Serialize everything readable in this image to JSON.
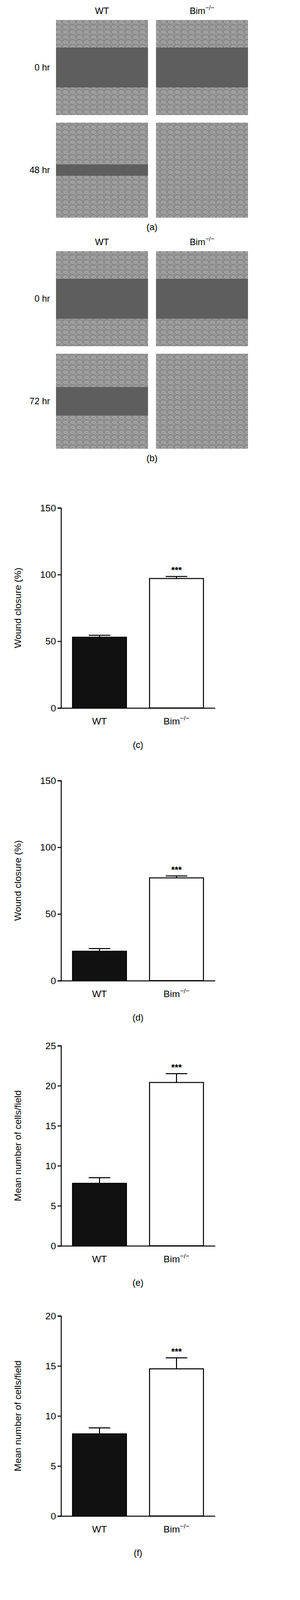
{
  "image_panels": [
    {
      "label": "(a)",
      "columns": [
        "WT",
        "Bim−/−"
      ],
      "rows": [
        "0 hr",
        "48 hr"
      ]
    },
    {
      "label": "(b)",
      "columns": [
        "WT",
        "Bim−/−"
      ],
      "rows": [
        "0 hr",
        "72 hr"
      ]
    }
  ],
  "chart_data": [
    {
      "type": "bar",
      "title": "(c)",
      "y_label": "Wound closure (%)",
      "categories": [
        "WT",
        "Bim−/−"
      ],
      "values": [
        53,
        97
      ],
      "errors": [
        1.5,
        1.5
      ],
      "colors": [
        "#111111",
        "#ffffff"
      ],
      "ylim": [
        0,
        150
      ],
      "yticks": [
        0,
        50,
        100,
        150
      ],
      "grid": false,
      "annotations": [
        {
          "category": "Bim−/−",
          "text": "***"
        }
      ]
    },
    {
      "type": "bar",
      "title": "(d)",
      "y_label": "Wound closure (%)",
      "categories": [
        "WT",
        "Bim−/−"
      ],
      "values": [
        22,
        77
      ],
      "errors": [
        2,
        1.5
      ],
      "colors": [
        "#111111",
        "#ffffff"
      ],
      "ylim": [
        0,
        150
      ],
      "yticks": [
        0,
        50,
        100,
        150
      ],
      "grid": false,
      "annotations": [
        {
          "category": "Bim−/−",
          "text": "***"
        }
      ]
    },
    {
      "type": "bar",
      "title": "(e)",
      "y_label": "Mean number of cells/field",
      "categories": [
        "WT",
        "Bim−/−"
      ],
      "values": [
        7.8,
        20.4
      ],
      "errors": [
        0.7,
        1.1
      ],
      "colors": [
        "#111111",
        "#ffffff"
      ],
      "ylim": [
        0,
        25
      ],
      "yticks": [
        0,
        5,
        10,
        15,
        20,
        25
      ],
      "grid": false,
      "annotations": [
        {
          "category": "Bim−/−",
          "text": "***"
        }
      ]
    },
    {
      "type": "bar",
      "title": "(f)",
      "y_label": "Mean number of cells/field",
      "categories": [
        "WT",
        "Bim−/−"
      ],
      "values": [
        8.2,
        14.7
      ],
      "errors": [
        0.6,
        1.1
      ],
      "colors": [
        "#111111",
        "#ffffff"
      ],
      "ylim": [
        0,
        20
      ],
      "yticks": [
        0,
        5,
        10,
        15,
        20
      ],
      "grid": false,
      "annotations": [
        {
          "category": "Bim−/−",
          "text": "***"
        }
      ]
    }
  ]
}
